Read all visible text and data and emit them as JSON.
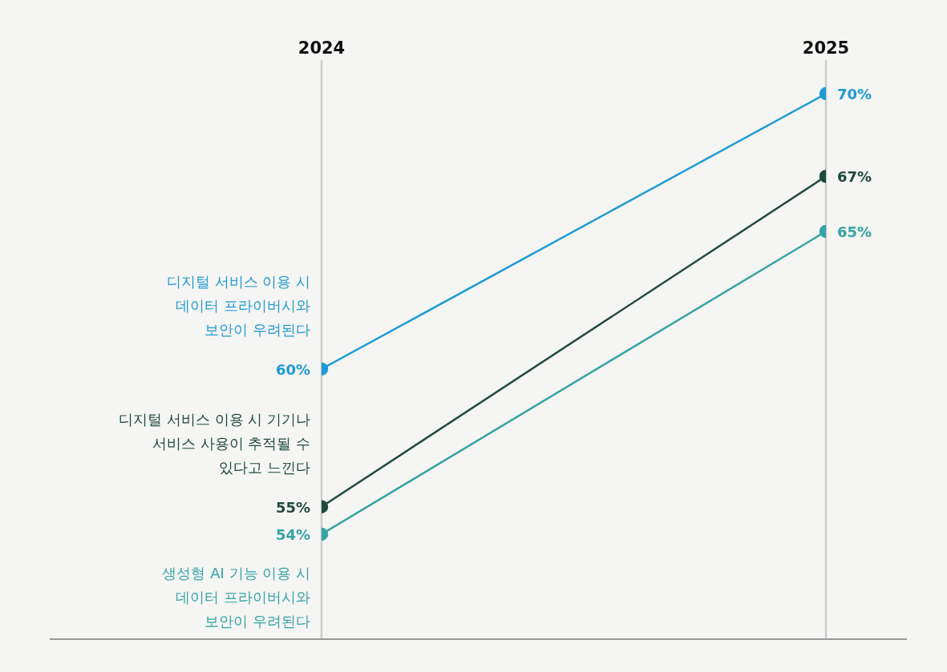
{
  "chart_data": {
    "type": "line",
    "categories": [
      "2024",
      "2025"
    ],
    "grid": "x",
    "marker": "circle",
    "series": [
      {
        "name": "디지털 서비스 이용 시\n데이터 프라이버시와\n보안이 우려된다",
        "color": "#1e9ad6",
        "values": [
          60,
          70
        ],
        "value_labels": [
          "60%",
          "70%"
        ]
      },
      {
        "name": "디지털 서비스 이용 시 기기나\n서비스 사용이 추적될 수\n있다고 느낀다",
        "color": "#1e4a3e",
        "values": [
          55,
          67
        ],
        "value_labels": [
          "55%",
          "67%"
        ]
      },
      {
        "name": "생성형 AI 기능 이용 시\n데이터 프라이버시와\n보안이 우려된다",
        "color": "#36a3a6",
        "values": [
          54,
          65
        ],
        "value_labels": [
          "54%",
          "65%"
        ]
      }
    ]
  }
}
